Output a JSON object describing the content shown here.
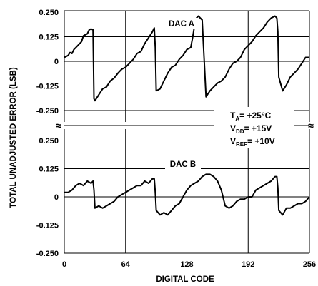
{
  "chart_data": [
    {
      "type": "line",
      "panel": "top",
      "series_label": "DAC A",
      "y_ticks": [
        "0.250",
        "0.125",
        "0",
        "-0.125",
        "-0.250"
      ],
      "ylim": [
        -0.25,
        0.25
      ],
      "xlim": [
        0,
        256
      ],
      "series": [
        {
          "name": "DAC A",
          "x": [
            0,
            2,
            4,
            6,
            8,
            10,
            12,
            14,
            16,
            18,
            20,
            22,
            24,
            26,
            28,
            30,
            31,
            32,
            36,
            40,
            44,
            48,
            52,
            56,
            60,
            64,
            68,
            72,
            76,
            80,
            84,
            88,
            92,
            94,
            95,
            96,
            100,
            104,
            108,
            112,
            116,
            120,
            124,
            128,
            132,
            134,
            136,
            138,
            140,
            144,
            148,
            152,
            156,
            160,
            164,
            168,
            172,
            176,
            180,
            184,
            188,
            192,
            196,
            200,
            204,
            208,
            212,
            216,
            220,
            222,
            223,
            224,
            228,
            232,
            236,
            240,
            244,
            248,
            252,
            256
          ],
          "y": [
            0.02,
            0.025,
            0.03,
            0.045,
            0.04,
            0.06,
            0.07,
            0.08,
            0.09,
            0.1,
            0.13,
            0.135,
            0.14,
            0.16,
            0.165,
            0.16,
            -0.19,
            -0.2,
            -0.17,
            -0.14,
            -0.13,
            -0.1,
            -0.085,
            -0.06,
            -0.04,
            -0.03,
            -0.01,
            0.01,
            0.04,
            0.05,
            0.09,
            0.12,
            0.15,
            0.17,
            0.07,
            -0.15,
            -0.14,
            -0.1,
            -0.06,
            -0.03,
            -0.02,
            0.01,
            0.03,
            0.06,
            0.07,
            0.12,
            0.18,
            0.22,
            0.23,
            0.21,
            -0.18,
            -0.15,
            -0.13,
            -0.11,
            -0.1,
            -0.08,
            -0.04,
            -0.01,
            0.0,
            0.02,
            0.06,
            0.08,
            0.1,
            0.13,
            0.15,
            0.17,
            0.2,
            0.22,
            0.23,
            0.22,
            0.15,
            -0.08,
            -0.15,
            -0.12,
            -0.08,
            -0.06,
            -0.04,
            -0.01,
            0.02,
            0.02
          ]
        }
      ]
    },
    {
      "type": "line",
      "panel": "bottom",
      "series_label": "DAC B",
      "y_ticks": [
        "0.250",
        "0.125",
        "0",
        "-0.125",
        "-0.250"
      ],
      "ylim": [
        -0.25,
        0.25
      ],
      "xlim": [
        0,
        256
      ],
      "x_ticks": [
        "0",
        "64",
        "128",
        "192",
        "256"
      ],
      "xlabel": "DIGITAL CODE",
      "series": [
        {
          "name": "DAC B",
          "x": [
            0,
            4,
            8,
            12,
            16,
            20,
            24,
            28,
            30,
            31,
            32,
            36,
            40,
            44,
            48,
            52,
            56,
            60,
            64,
            68,
            72,
            76,
            80,
            84,
            88,
            92,
            94,
            95,
            96,
            100,
            104,
            108,
            112,
            116,
            120,
            124,
            128,
            132,
            136,
            140,
            144,
            148,
            152,
            156,
            160,
            164,
            168,
            172,
            176,
            180,
            184,
            188,
            192,
            196,
            200,
            204,
            208,
            212,
            216,
            220,
            222,
            223,
            224,
            228,
            232,
            236,
            240,
            244,
            248,
            252,
            256
          ],
          "y": [
            0.02,
            0.02,
            0.03,
            0.05,
            0.06,
            0.05,
            0.07,
            0.06,
            0.07,
            0.03,
            -0.05,
            -0.04,
            -0.05,
            -0.04,
            -0.03,
            -0.02,
            0.0,
            0.01,
            0.02,
            0.03,
            0.04,
            0.05,
            0.05,
            0.07,
            0.06,
            0.08,
            0.08,
            0.02,
            -0.06,
            -0.08,
            -0.07,
            -0.08,
            -0.06,
            -0.04,
            -0.03,
            0.0,
            0.03,
            0.05,
            0.06,
            0.07,
            0.09,
            0.1,
            0.1,
            0.09,
            0.07,
            0.03,
            -0.04,
            -0.05,
            -0.04,
            -0.02,
            -0.01,
            -0.01,
            0.0,
            0.0,
            0.03,
            0.04,
            0.05,
            0.06,
            0.07,
            0.09,
            0.09,
            0.04,
            -0.06,
            -0.08,
            -0.05,
            -0.05,
            -0.04,
            -0.03,
            -0.03,
            -0.02,
            0.0
          ]
        }
      ]
    }
  ],
  "ylabel": "TOTAL UNADJUSTED ERROR (LSB)",
  "conditions": [
    "T",
    "A",
    "= +25°C",
    "V",
    "DD",
    "= +15V",
    "V",
    "REF",
    "= +10V"
  ],
  "break_mark": "≈",
  "colors": {
    "line": "#000000",
    "background": "#ffffff"
  }
}
